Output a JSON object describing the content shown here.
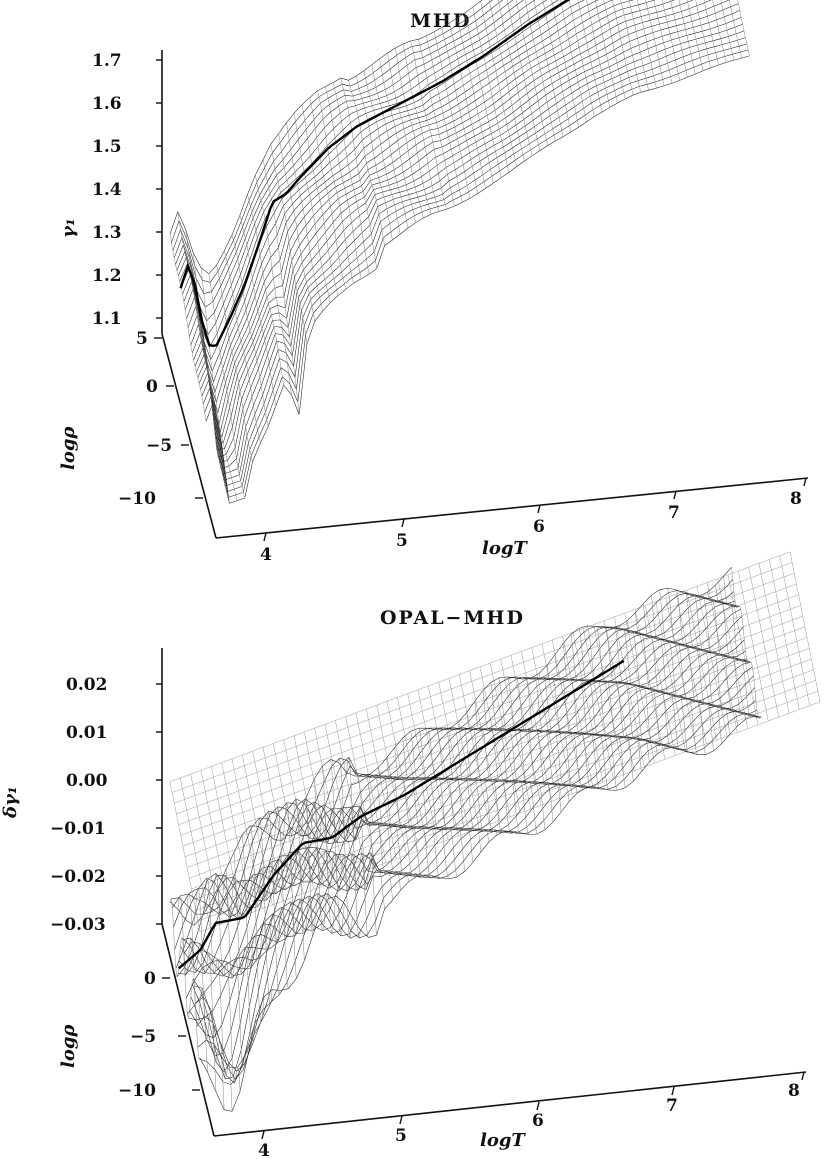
{
  "chart_data": [
    {
      "type": "surface",
      "title": "MHD",
      "xlabel": "logT",
      "ylabel": "logρ",
      "zlabel": "γ₁",
      "x_ticks": [
        "4",
        "5",
        "6",
        "7",
        "8"
      ],
      "y_ticks": [
        "5",
        "0",
        "−5",
        "−10"
      ],
      "z_ticks": [
        "1.1",
        "1.2",
        "1.3",
        "1.4",
        "1.5",
        "1.6",
        "1.7"
      ],
      "xlim": [
        3.75,
        8
      ],
      "ylim": [
        -12,
        5
      ],
      "zlim": [
        1.08,
        1.72
      ],
      "highlight_curve": {
        "x": [
          3.75,
          3.8,
          3.85,
          3.9,
          3.95,
          4.0,
          4.1,
          4.2,
          4.3,
          4.4,
          4.5,
          4.6,
          4.8,
          5.0,
          5.3,
          5.6,
          5.9,
          6.2,
          6.5,
          6.8
        ],
        "z": [
          1.3,
          1.35,
          1.3,
          1.2,
          1.13,
          1.12,
          1.18,
          1.25,
          1.34,
          1.44,
          1.45,
          1.48,
          1.53,
          1.56,
          1.58,
          1.6,
          1.63,
          1.67,
          1.7,
          1.72
        ]
      }
    },
    {
      "type": "surface",
      "title": "OPAL−MHD",
      "xlabel": "logT",
      "ylabel": "logρ",
      "zlabel": "δγ₁",
      "x_ticks": [
        "4",
        "5",
        "6",
        "7",
        "8"
      ],
      "y_ticks": [
        "0",
        "−5",
        "−10"
      ],
      "z_ticks": [
        "0.02",
        "0.01",
        "0.00",
        "−0.01",
        "−0.02",
        "−0.03"
      ],
      "xlim": [
        3.75,
        8
      ],
      "ylim": [
        -12,
        5
      ],
      "zlim": [
        -0.03,
        0.025
      ],
      "highlight_curve": {
        "x": [
          3.75,
          3.9,
          4.0,
          4.2,
          4.4,
          4.6,
          4.8,
          5.0,
          5.3,
          5.6,
          5.9,
          6.2,
          6.5,
          6.8
        ],
        "z": [
          -0.027,
          -0.025,
          -0.021,
          -0.022,
          -0.016,
          -0.012,
          -0.013,
          -0.011,
          -0.01,
          -0.008,
          -0.006,
          -0.004,
          -0.002,
          0.0
        ]
      }
    }
  ]
}
